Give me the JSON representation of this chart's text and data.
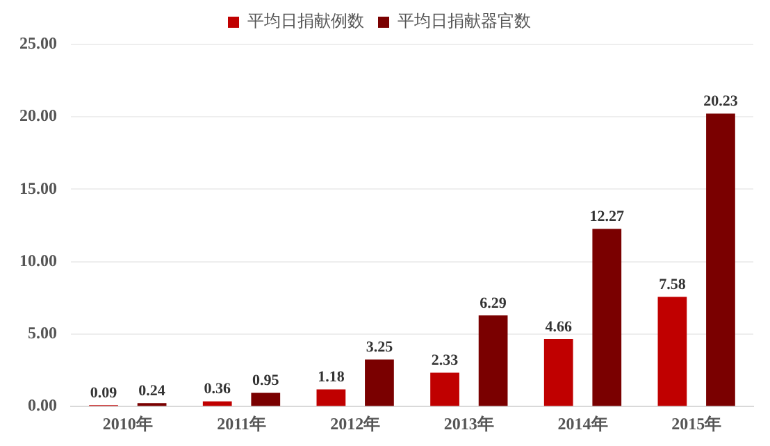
{
  "chart_data": {
    "type": "bar",
    "categories": [
      "2010年",
      "2011年",
      "2012年",
      "2013年",
      "2014年",
      "2015年"
    ],
    "series": [
      {
        "name": "平均日捐献例数",
        "color": "#c00000",
        "values": [
          0.09,
          0.36,
          1.18,
          2.33,
          4.66,
          7.58
        ]
      },
      {
        "name": "平均日捐献器官数",
        "color": "#7a0000",
        "values": [
          0.24,
          0.95,
          3.25,
          6.29,
          12.27,
          20.23
        ]
      }
    ],
    "ylim": [
      0,
      25
    ],
    "yticks": [
      {
        "value": 0,
        "label": "0.00"
      },
      {
        "value": 5,
        "label": "5.00"
      },
      {
        "value": 10,
        "label": "10.00"
      },
      {
        "value": 15,
        "label": "15.00"
      },
      {
        "value": 20,
        "label": "20.00"
      },
      {
        "value": 25,
        "label": "25.00"
      }
    ],
    "grid": "y",
    "legend": "top",
    "data_labels": true
  }
}
